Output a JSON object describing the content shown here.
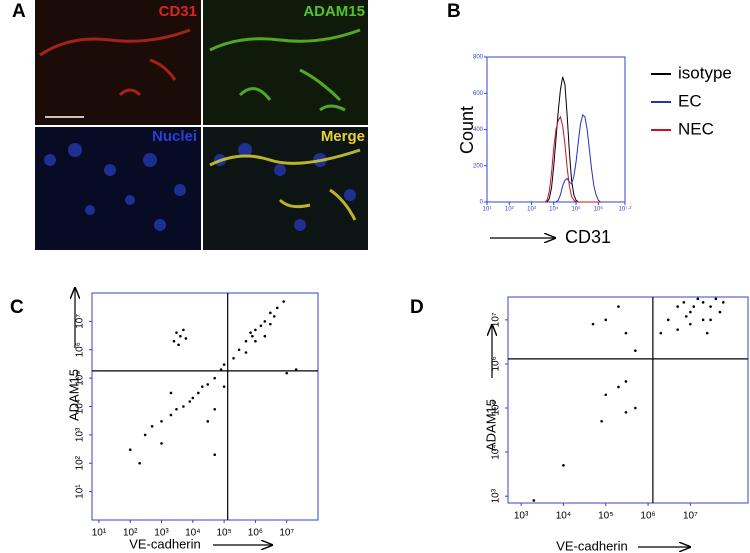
{
  "figure": {
    "panel_labels": [
      "A",
      "B",
      "C",
      "D"
    ],
    "image_labels": [
      "CD31",
      "ADAM15",
      "Nuclei",
      "Merge"
    ]
  },
  "chart_data": [
    {
      "type": "line",
      "x_label": "CD31",
      "y_label": "Count",
      "xlog": true,
      "x": [
        3981,
        5012,
        6310,
        7943,
        10000,
        12589,
        15849,
        19953,
        25119,
        31623,
        39811,
        50119,
        63096,
        79433,
        100000,
        125893,
        158489,
        199526,
        251189,
        316228,
        398107,
        501187,
        630957,
        794328,
        1000000,
        1258925,
        1584893
      ],
      "xlim": [
        10,
        15848932
      ],
      "xticks": [
        {
          "value": 10,
          "label": "10¹"
        },
        {
          "value": 100,
          "label": "10²"
        },
        {
          "value": 1000,
          "label": "10³"
        },
        {
          "value": 10000,
          "label": "10⁴"
        },
        {
          "value": 100000,
          "label": "10⁵"
        },
        {
          "value": 1000000,
          "label": "10⁶"
        },
        {
          "value": 15848932,
          "label": "10⁷·²"
        }
      ],
      "ylim": [
        0,
        800
      ],
      "yticks": [
        0,
        200,
        400,
        600,
        800
      ],
      "legend": "outside-right",
      "series": [
        {
          "name": "isotype",
          "color": "#000000",
          "values": [
            0,
            0,
            20,
            80,
            200,
            350,
            500,
            620,
            690,
            650,
            480,
            280,
            120,
            40,
            10,
            0,
            0,
            0,
            0,
            0,
            0,
            0,
            0,
            0,
            0,
            0,
            0
          ]
        },
        {
          "name": "EC",
          "color": "#2233bb",
          "values": [
            0,
            0,
            0,
            0,
            0,
            0,
            10,
            40,
            90,
            120,
            130,
            110,
            100,
            140,
            220,
            330,
            430,
            480,
            470,
            400,
            290,
            180,
            90,
            40,
            10,
            0,
            0
          ]
        },
        {
          "name": "NEC",
          "color": "#cc1122",
          "values": [
            0,
            10,
            60,
            160,
            300,
            400,
            450,
            470,
            420,
            320,
            190,
            90,
            30,
            10,
            0,
            0,
            0,
            0,
            0,
            0,
            0,
            0,
            0,
            0,
            0,
            0,
            0
          ]
        }
      ]
    },
    {
      "type": "scatter",
      "x_label": "VE-cadherin",
      "y_label": "ADAM15",
      "xlog": true,
      "ylog": true,
      "color": "#000000",
      "xlim": [
        6,
        100000000
      ],
      "ylim": [
        1,
        100000000
      ],
      "xticks": [
        {
          "value": 10,
          "label": "10¹"
        },
        {
          "value": 100,
          "label": "10²"
        },
        {
          "value": 1000,
          "label": "10³"
        },
        {
          "value": 10000,
          "label": "10⁴"
        },
        {
          "value": 100000,
          "label": "10⁵"
        },
        {
          "value": 1000000,
          "label": "10⁶"
        },
        {
          "value": 10000000,
          "label": "10⁷"
        }
      ],
      "yticks": [
        {
          "value": 10,
          "label": "10¹"
        },
        {
          "value": 100,
          "label": "10²"
        },
        {
          "value": 1000,
          "label": "10³"
        },
        {
          "value": 10000,
          "label": "10⁴"
        },
        {
          "value": 100000,
          "label": "10⁵"
        },
        {
          "value": 1000000,
          "label": "10⁶"
        },
        {
          "value": 10000000,
          "label": "10⁷"
        }
      ],
      "gate_x": 130000,
      "gate_y": 180000,
      "x": [
        2500,
        3000,
        4000,
        6000,
        5000,
        3500,
        1000,
        2000,
        3000,
        5000,
        8000,
        10000,
        15000,
        20000,
        30000,
        50000,
        80000,
        100000,
        200000,
        300000,
        500000,
        800000,
        1000000,
        2000000,
        3000000,
        5000000,
        2000000,
        1000000,
        500000,
        3000000,
        8000000,
        4000000,
        1500000,
        700000,
        300,
        500,
        100,
        200,
        1000,
        30000,
        50000,
        2000,
        100000,
        20000000,
        10000000,
        50000
      ],
      "y": [
        2000000,
        4000000,
        3000000,
        2500000,
        5000000,
        1500000,
        3000,
        5000,
        8000,
        10000,
        15000,
        20000,
        30000,
        50000,
        60000,
        100000,
        200000,
        300000,
        500000,
        1000000,
        2000000,
        3000000,
        5000000,
        10000000,
        20000000,
        30000000,
        3000000,
        2000000,
        800000,
        8000000,
        50000000,
        15000000,
        7000000,
        4000000,
        1000,
        2000,
        300,
        100,
        500,
        3000,
        200,
        30000,
        50000,
        200000,
        150000,
        8000
      ]
    },
    {
      "type": "scatter",
      "x_label": "VE-cadherin",
      "y_label": "ADAM15",
      "xlog": true,
      "ylog": true,
      "color": "#000000",
      "xlim": [
        490,
        230000000
      ],
      "ylim": [
        700,
        33000000
      ],
      "xticks": [
        {
          "value": 1000,
          "label": "10³"
        },
        {
          "value": 10000,
          "label": "10⁴"
        },
        {
          "value": 100000,
          "label": "10⁵"
        },
        {
          "value": 1000000,
          "label": "10⁶"
        },
        {
          "value": 10000000,
          "label": "10⁷"
        }
      ],
      "yticks": [
        {
          "value": 1000,
          "label": "10³"
        },
        {
          "value": 10000,
          "label": "10⁴"
        },
        {
          "value": 100000,
          "label": "10⁵"
        },
        {
          "value": 1000000,
          "label": "10⁶"
        },
        {
          "value": 10000000,
          "label": "10⁷"
        }
      ],
      "gate_x": 1300000,
      "gate_y": 1300000,
      "x": [
        3000000,
        5000000,
        10000000,
        20000000,
        30000000,
        10000000,
        5000000,
        20000000,
        40000000,
        60000000,
        15000000,
        8000000,
        30000000,
        2000000,
        12000000,
        50000000,
        25000000,
        7000000,
        100000,
        200000,
        50000,
        300000,
        200000,
        100000,
        500000,
        300000,
        80000,
        10000,
        2000,
        300000,
        500000
      ],
      "y": [
        10000000,
        20000000,
        15000000,
        25000000,
        20000000,
        8000000,
        6000000,
        10000000,
        30000000,
        25000000,
        30000000,
        12000000,
        10000000,
        5000000,
        20000000,
        15000000,
        5000000,
        25000000,
        10000000,
        20000000,
        8000000,
        5000000,
        300000,
        200000,
        100000,
        80000,
        50000,
        5000,
        800,
        400000,
        2000000
      ]
    }
  ]
}
